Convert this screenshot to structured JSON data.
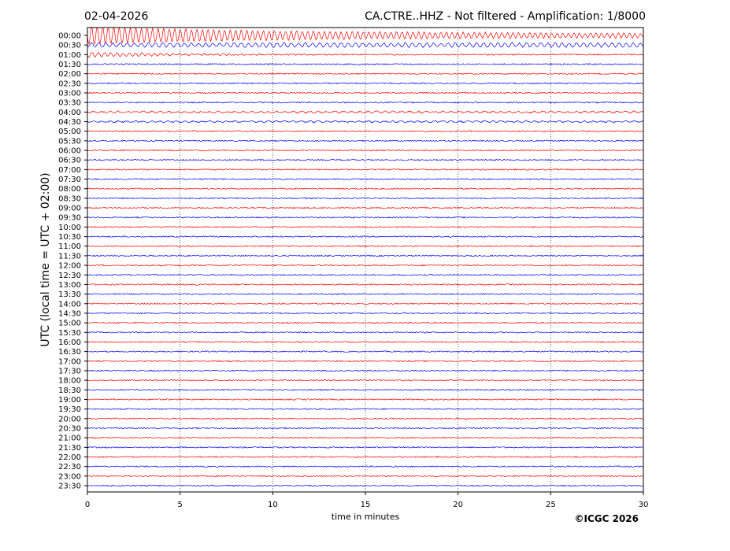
{
  "chart_data": {
    "type": "helicorder",
    "date": "02-04-2026",
    "title": "CA.CTRE..HHZ - Not filtered - Amplification: 1/8000",
    "ylabel": "UTC (local time = UTC + 02:00)",
    "xlabel": "time in minutes",
    "copyright": "©ICGC 2026",
    "xlim": [
      0,
      30
    ],
    "xticks": [
      0,
      5,
      10,
      15,
      20,
      25,
      30
    ],
    "grid": true,
    "trace_colors": [
      "#ff0000",
      "#0000ff"
    ],
    "categories": [
      "00:00",
      "00:30",
      "01:00",
      "01:30",
      "02:00",
      "02:30",
      "03:00",
      "03:30",
      "04:00",
      "04:30",
      "05:00",
      "05:30",
      "06:00",
      "06:30",
      "07:00",
      "07:30",
      "08:00",
      "08:30",
      "09:00",
      "09:30",
      "10:00",
      "10:30",
      "11:00",
      "11:30",
      "12:00",
      "12:30",
      "13:00",
      "13:30",
      "14:00",
      "14:30",
      "15:00",
      "15:30",
      "16:00",
      "16:30",
      "17:00",
      "17:30",
      "18:00",
      "18:30",
      "19:00",
      "19:30",
      "20:00",
      "20:30",
      "21:00",
      "21:30",
      "22:00",
      "22:30",
      "23:00",
      "23:30"
    ]
  }
}
